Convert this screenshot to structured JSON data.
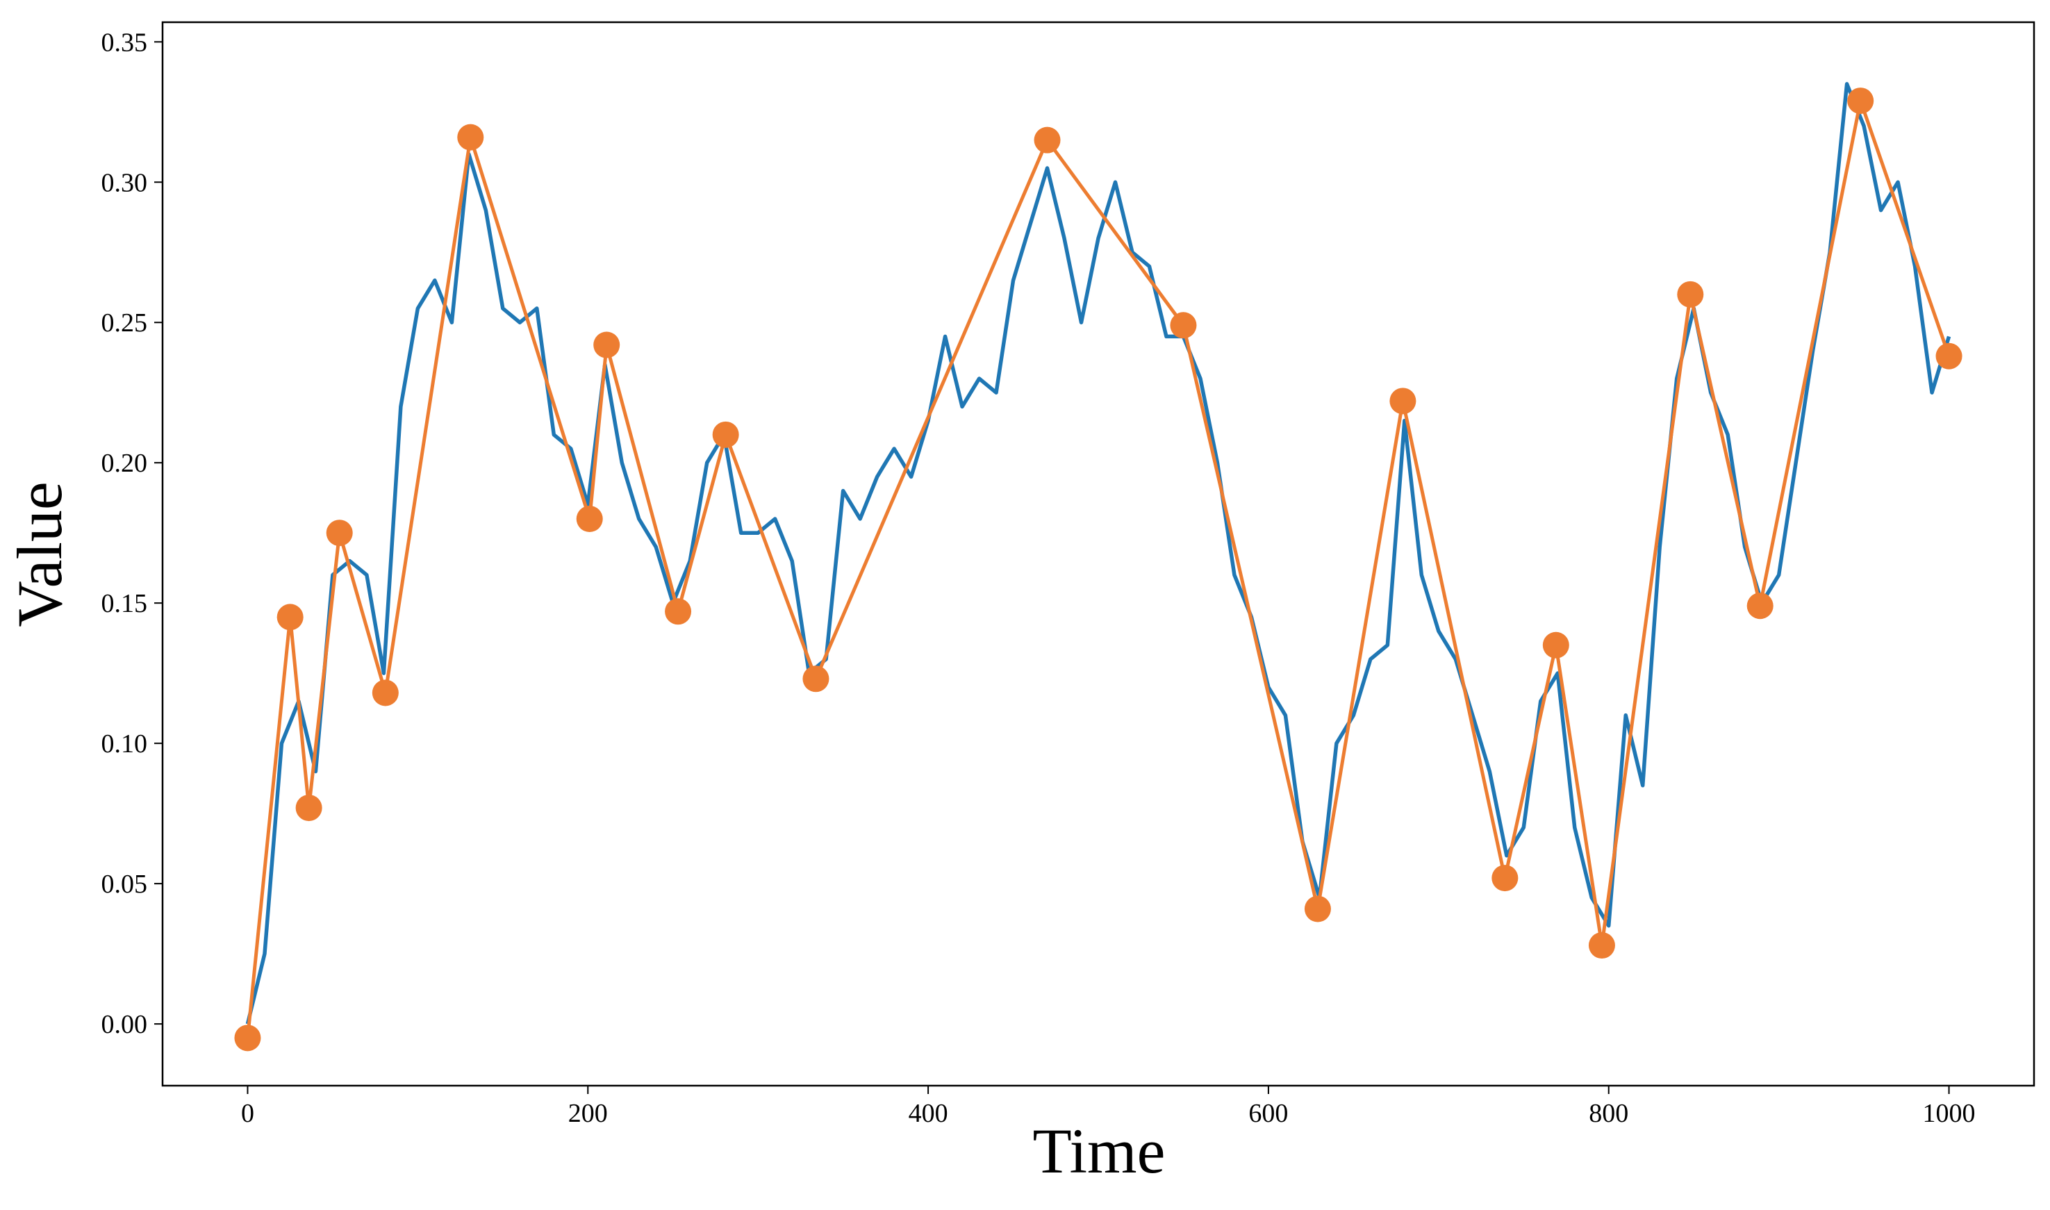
{
  "chart_data": {
    "type": "line",
    "xlabel": "Time",
    "ylabel": "Value",
    "xlim": [
      -50,
      1050
    ],
    "ylim": [
      -0.022,
      0.357
    ],
    "xticks": [
      0,
      200,
      400,
      600,
      800,
      1000
    ],
    "yticks": [
      {
        "value": 0,
        "label": "0.00"
      },
      0.05,
      {
        "value": 0.1,
        "label": "0.10"
      },
      0.15,
      {
        "value": 0.2,
        "label": "0.20"
      },
      0.25,
      {
        "value": 0.3,
        "label": "0.30"
      },
      0.35
    ],
    "grid": false,
    "series": [
      {
        "color": "#1f77b4",
        "markers": false,
        "x": [
          0,
          10,
          20,
          30,
          40,
          50,
          60,
          70,
          80,
          90,
          100,
          110,
          120,
          130,
          140,
          150,
          160,
          170,
          180,
          190,
          200,
          210,
          220,
          230,
          240,
          250,
          260,
          270,
          280,
          290,
          300,
          310,
          320,
          330,
          340,
          350,
          360,
          370,
          380,
          390,
          400,
          410,
          420,
          430,
          440,
          450,
          460,
          470,
          480,
          490,
          500,
          510,
          520,
          530,
          540,
          550,
          560,
          570,
          580,
          590,
          600,
          610,
          620,
          630,
          640,
          650,
          660,
          670,
          680,
          690,
          700,
          710,
          720,
          730,
          740,
          750,
          760,
          770,
          780,
          790,
          800,
          810,
          820,
          830,
          840,
          850,
          860,
          870,
          880,
          890,
          900,
          910,
          920,
          930,
          940,
          950,
          960,
          970,
          980,
          990,
          1000
        ],
        "values": [
          0.0,
          0.025,
          0.1,
          0.115,
          0.09,
          0.16,
          0.165,
          0.16,
          0.125,
          0.22,
          0.255,
          0.265,
          0.25,
          0.31,
          0.29,
          0.255,
          0.25,
          0.255,
          0.21,
          0.205,
          0.185,
          0.235,
          0.2,
          0.18,
          0.17,
          0.15,
          0.165,
          0.2,
          0.21,
          0.175,
          0.175,
          0.18,
          0.165,
          0.125,
          0.13,
          0.19,
          0.18,
          0.195,
          0.205,
          0.195,
          0.215,
          0.245,
          0.22,
          0.23,
          0.225,
          0.265,
          0.285,
          0.305,
          0.28,
          0.25,
          0.28,
          0.3,
          0.275,
          0.27,
          0.245,
          0.245,
          0.23,
          0.2,
          0.16,
          0.145,
          0.12,
          0.11,
          0.065,
          0.045,
          0.1,
          0.11,
          0.13,
          0.135,
          0.215,
          0.16,
          0.14,
          0.13,
          0.11,
          0.09,
          0.06,
          0.07,
          0.115,
          0.125,
          0.07,
          0.045,
          0.035,
          0.11,
          0.085,
          0.17,
          0.23,
          0.255,
          0.225,
          0.21,
          0.17,
          0.15,
          0.16,
          0.2,
          0.24,
          0.275,
          0.335,
          0.32,
          0.29,
          0.3,
          0.27,
          0.225,
          0.245
        ]
      },
      {
        "color": "#ed7d31",
        "markers": true,
        "x": [
          0,
          25,
          36,
          54,
          81,
          131,
          201,
          211,
          253,
          281,
          334,
          470,
          550,
          629,
          679,
          739,
          769,
          796,
          848,
          889,
          948,
          1000
        ],
        "values": [
          -0.005,
          0.145,
          0.077,
          0.175,
          0.118,
          0.316,
          0.18,
          0.242,
          0.147,
          0.21,
          0.123,
          0.315,
          0.249,
          0.041,
          0.222,
          0.052,
          0.135,
          0.028,
          0.26,
          0.149,
          0.329,
          0.238
        ]
      }
    ]
  }
}
